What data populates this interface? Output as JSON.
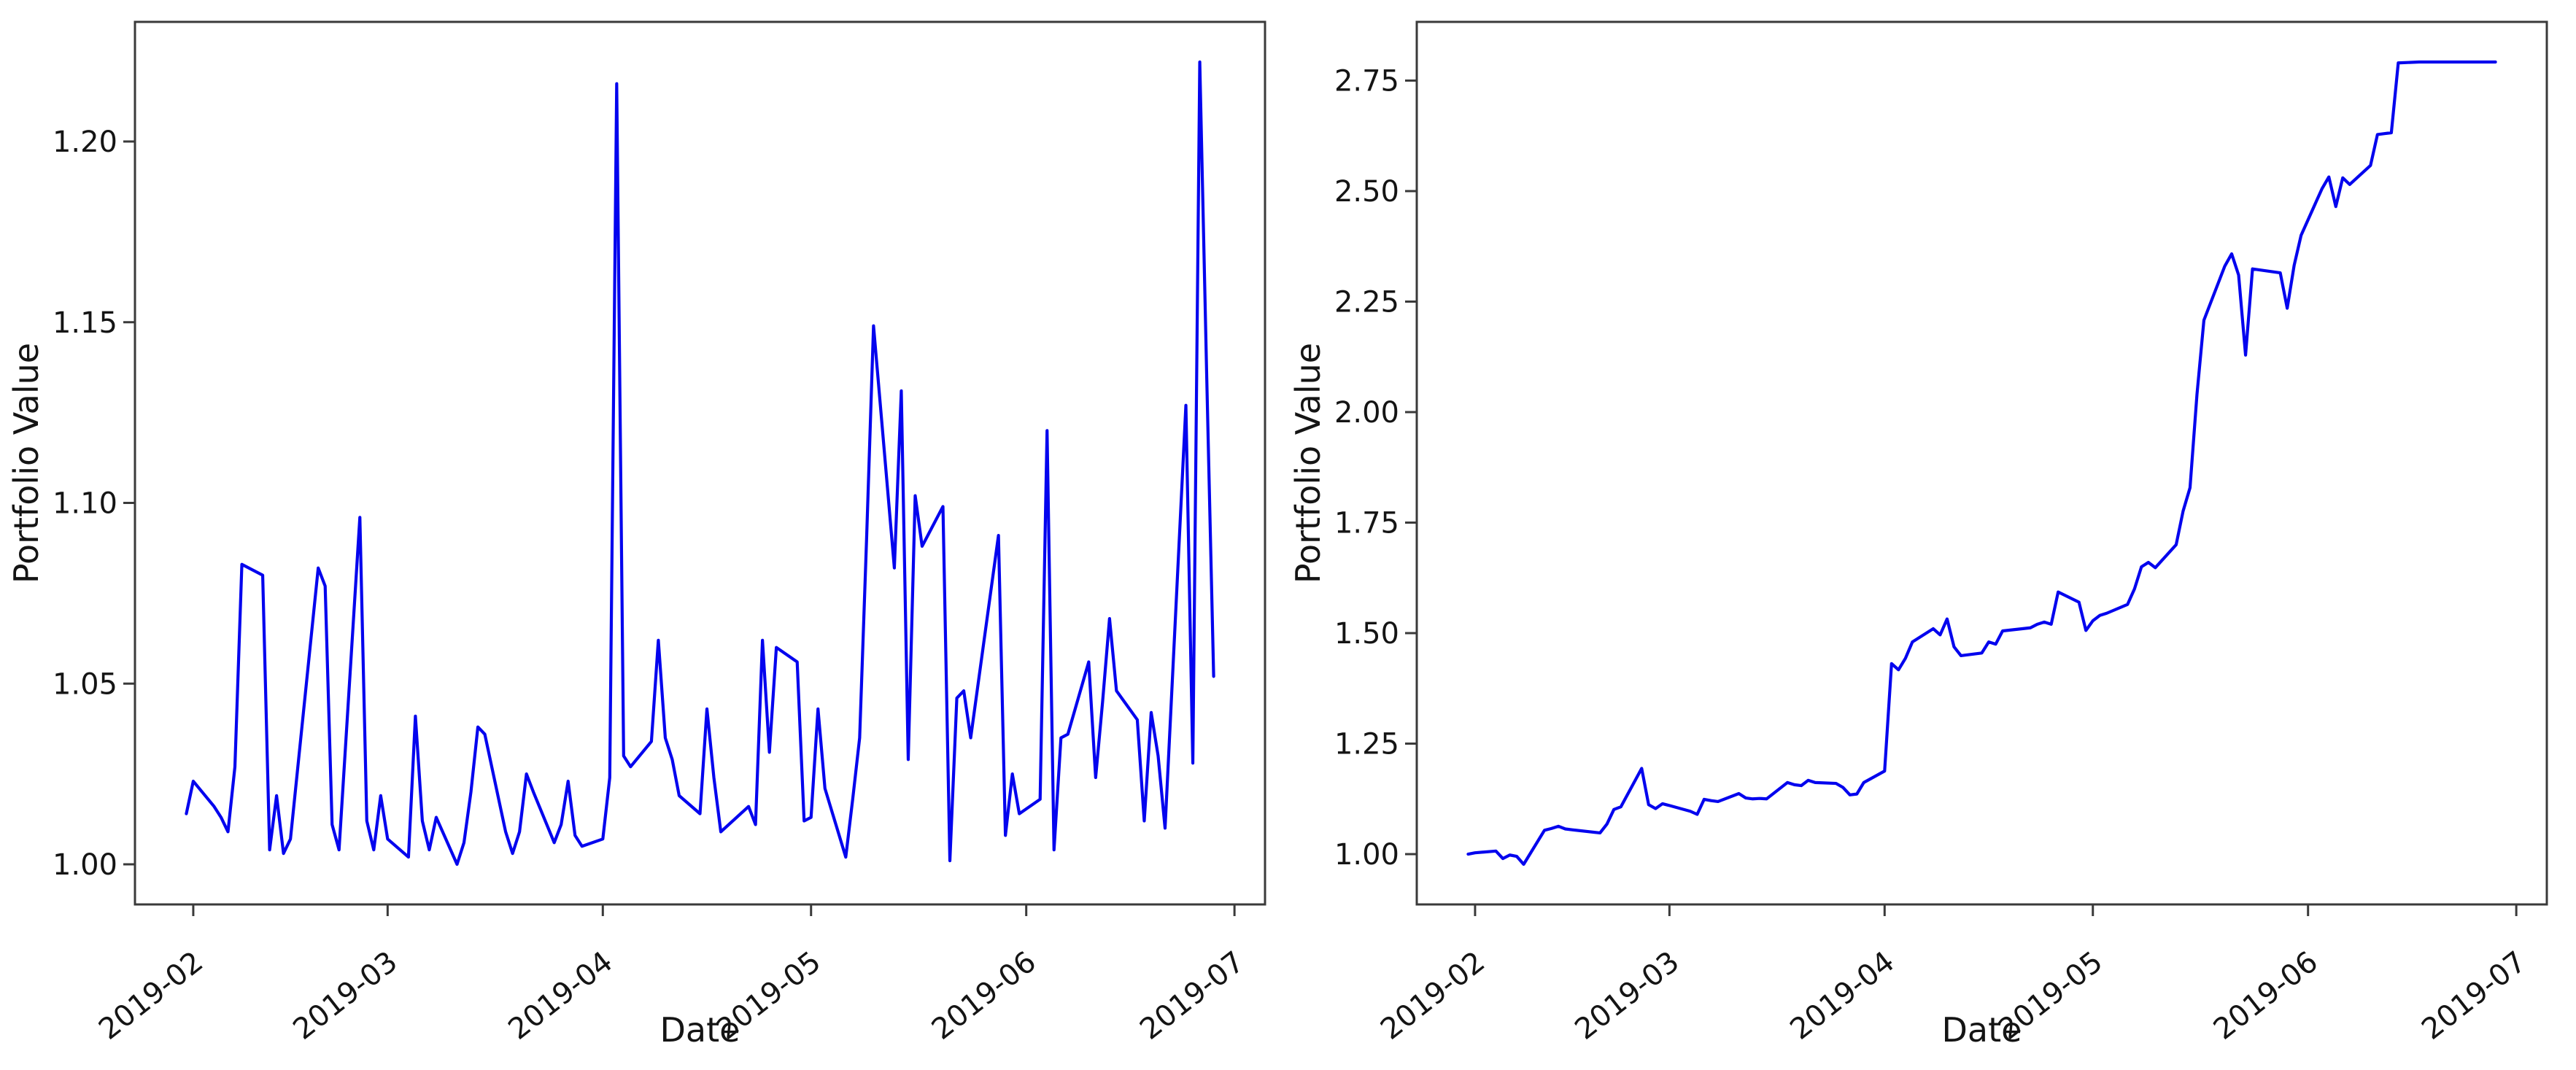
{
  "figure": {
    "background": "#ffffff",
    "line_color": "#0404ee",
    "spine_color": "#3a3a3a",
    "text_color": "#141414"
  },
  "chart_data": [
    {
      "type": "line",
      "title": "",
      "xlabel": "Date",
      "ylabel": "Portfolio Value",
      "legend": null,
      "grid": false,
      "x_tick_labels": [
        "2019-02",
        "2019-03",
        "2019-04",
        "2019-05",
        "2019-06",
        "2019-07"
      ],
      "y_ticks": [
        1.0,
        1.05,
        1.1,
        1.15,
        1.2
      ],
      "y_tick_decimals": 2,
      "ylim": [
        0.9889,
        1.2331
      ],
      "x_margin_frac": 0.05,
      "x": [
        "2019-01-31",
        "2019-02-01",
        "2019-02-04",
        "2019-02-05",
        "2019-02-06",
        "2019-02-07",
        "2019-02-08",
        "2019-02-11",
        "2019-02-12",
        "2019-02-13",
        "2019-02-14",
        "2019-02-15",
        "2019-02-19",
        "2019-02-20",
        "2019-02-21",
        "2019-02-22",
        "2019-02-25",
        "2019-02-26",
        "2019-02-27",
        "2019-02-28",
        "2019-03-01",
        "2019-03-04",
        "2019-03-05",
        "2019-03-06",
        "2019-03-07",
        "2019-03-08",
        "2019-03-11",
        "2019-03-12",
        "2019-03-13",
        "2019-03-14",
        "2019-03-15",
        "2019-03-18",
        "2019-03-19",
        "2019-03-20",
        "2019-03-21",
        "2019-03-22",
        "2019-03-25",
        "2019-03-26",
        "2019-03-27",
        "2019-03-28",
        "2019-03-29",
        "2019-04-01",
        "2019-04-02",
        "2019-04-03",
        "2019-04-04",
        "2019-04-05",
        "2019-04-08",
        "2019-04-09",
        "2019-04-10",
        "2019-04-11",
        "2019-04-12",
        "2019-04-15",
        "2019-04-16",
        "2019-04-17",
        "2019-04-18",
        "2019-04-22",
        "2019-04-23",
        "2019-04-24",
        "2019-04-25",
        "2019-04-26",
        "2019-04-29",
        "2019-04-30",
        "2019-05-01",
        "2019-05-02",
        "2019-05-03",
        "2019-05-06",
        "2019-05-07",
        "2019-05-08",
        "2019-05-09",
        "2019-05-10",
        "2019-05-13",
        "2019-05-14",
        "2019-05-15",
        "2019-05-16",
        "2019-05-17",
        "2019-05-20",
        "2019-05-21",
        "2019-05-22",
        "2019-05-23",
        "2019-05-24",
        "2019-05-28",
        "2019-05-29",
        "2019-05-30",
        "2019-05-31",
        "2019-06-03",
        "2019-06-04",
        "2019-06-05",
        "2019-06-06",
        "2019-06-07",
        "2019-06-10",
        "2019-06-11",
        "2019-06-12",
        "2019-06-13",
        "2019-06-14",
        "2019-06-17",
        "2019-06-18",
        "2019-06-19",
        "2019-06-20",
        "2019-06-21",
        "2019-06-24",
        "2019-06-25",
        "2019-06-26",
        "2019-06-27",
        "2019-06-28"
      ],
      "y": [
        1.014,
        1.023,
        1.016,
        1.013,
        1.009,
        1.027,
        1.083,
        1.08,
        1.004,
        1.019,
        1.003,
        1.007,
        1.082,
        1.077,
        1.011,
        1.004,
        1.096,
        1.012,
        1.004,
        1.019,
        1.007,
        1.002,
        1.041,
        1.012,
        1.004,
        1.013,
        1.0,
        1.006,
        1.02,
        1.038,
        1.036,
        1.009,
        1.003,
        1.009,
        1.025,
        1.02,
        1.006,
        1.011,
        1.023,
        1.008,
        1.005,
        1.007,
        1.024,
        1.216,
        1.03,
        1.027,
        1.034,
        1.062,
        1.035,
        1.029,
        1.019,
        1.014,
        1.043,
        1.024,
        1.009,
        1.016,
        1.011,
        1.062,
        1.031,
        1.06,
        1.056,
        1.012,
        1.013,
        1.043,
        1.021,
        1.002,
        1.018,
        1.035,
        1.09,
        1.149,
        1.082,
        1.131,
        1.029,
        1.102,
        1.088,
        1.099,
        1.001,
        1.046,
        1.048,
        1.035,
        1.091,
        1.008,
        1.025,
        1.014,
        1.018,
        1.12,
        1.004,
        1.035,
        1.036,
        1.056,
        1.024,
        1.045,
        1.068,
        1.048,
        1.04,
        1.012,
        1.042,
        1.03,
        1.01,
        1.127,
        1.028,
        1.222,
        1.135,
        1.052
      ]
    },
    {
      "type": "line",
      "title": "",
      "xlabel": "Date",
      "ylabel": "Portfolio Value",
      "legend": null,
      "grid": false,
      "x_tick_labels": [
        "2019-02",
        "2019-03",
        "2019-04",
        "2019-05",
        "2019-06",
        "2019-07"
      ],
      "y_ticks": [
        1.0,
        1.25,
        1.5,
        1.75,
        2.0,
        2.25,
        2.5,
        2.75
      ],
      "y_tick_decimals": 2,
      "ylim": [
        0.8862,
        2.8828
      ],
      "x_margin_frac": 0.05,
      "x": [
        "2019-01-31",
        "2019-02-01",
        "2019-02-04",
        "2019-02-05",
        "2019-02-06",
        "2019-02-07",
        "2019-02-08",
        "2019-02-11",
        "2019-02-12",
        "2019-02-13",
        "2019-02-14",
        "2019-02-15",
        "2019-02-19",
        "2019-02-20",
        "2019-02-21",
        "2019-02-22",
        "2019-02-25",
        "2019-02-26",
        "2019-02-27",
        "2019-02-28",
        "2019-03-01",
        "2019-03-04",
        "2019-03-05",
        "2019-03-06",
        "2019-03-07",
        "2019-03-08",
        "2019-03-11",
        "2019-03-12",
        "2019-03-13",
        "2019-03-14",
        "2019-03-15",
        "2019-03-18",
        "2019-03-19",
        "2019-03-20",
        "2019-03-21",
        "2019-03-22",
        "2019-03-25",
        "2019-03-26",
        "2019-03-27",
        "2019-03-28",
        "2019-03-29",
        "2019-04-01",
        "2019-04-02",
        "2019-04-03",
        "2019-04-04",
        "2019-04-05",
        "2019-04-08",
        "2019-04-09",
        "2019-04-10",
        "2019-04-11",
        "2019-04-12",
        "2019-04-15",
        "2019-04-16",
        "2019-04-17",
        "2019-04-18",
        "2019-04-22",
        "2019-04-23",
        "2019-04-24",
        "2019-04-25",
        "2019-04-26",
        "2019-04-29",
        "2019-04-30",
        "2019-05-01",
        "2019-05-02",
        "2019-05-03",
        "2019-05-06",
        "2019-05-07",
        "2019-05-08",
        "2019-05-09",
        "2019-05-10",
        "2019-05-13",
        "2019-05-14",
        "2019-05-15",
        "2019-05-16",
        "2019-05-17",
        "2019-05-20",
        "2019-05-21",
        "2019-05-22",
        "2019-05-23",
        "2019-05-24",
        "2019-05-28",
        "2019-05-29",
        "2019-05-30",
        "2019-05-31",
        "2019-06-03",
        "2019-06-04",
        "2019-06-05",
        "2019-06-06",
        "2019-06-07",
        "2019-06-10",
        "2019-06-11",
        "2019-06-12",
        "2019-06-13",
        "2019-06-14",
        "2019-06-17",
        "2019-06-18",
        "2019-06-19",
        "2019-06-20",
        "2019-06-21",
        "2019-06-24",
        "2019-06-25",
        "2019-06-26",
        "2019-06-27",
        "2019-06-28"
      ],
      "y": [
        1.0,
        1.003,
        1.007,
        0.99,
        0.998,
        0.995,
        0.977,
        1.054,
        1.058,
        1.063,
        1.057,
        1.055,
        1.048,
        1.068,
        1.101,
        1.107,
        1.194,
        1.112,
        1.103,
        1.114,
        1.11,
        1.097,
        1.09,
        1.124,
        1.121,
        1.119,
        1.137,
        1.127,
        1.125,
        1.126,
        1.125,
        1.162,
        1.157,
        1.155,
        1.167,
        1.162,
        1.16,
        1.151,
        1.134,
        1.136,
        1.162,
        1.188,
        1.431,
        1.417,
        1.443,
        1.48,
        1.51,
        1.496,
        1.532,
        1.469,
        1.449,
        1.455,
        1.48,
        1.475,
        1.505,
        1.512,
        1.52,
        1.525,
        1.52,
        1.593,
        1.57,
        1.506,
        1.528,
        1.54,
        1.545,
        1.565,
        1.6,
        1.65,
        1.66,
        1.648,
        1.7,
        1.776,
        1.829,
        2.04,
        2.208,
        2.33,
        2.358,
        2.31,
        2.129,
        2.324,
        2.315,
        2.235,
        2.332,
        2.4,
        2.505,
        2.532,
        2.465,
        2.53,
        2.515,
        2.558,
        2.628,
        2.63,
        2.632,
        2.79,
        2.792,
        2.792,
        2.792,
        2.792,
        2.792,
        2.792,
        2.792,
        2.792,
        2.792,
        2.792
      ]
    }
  ]
}
